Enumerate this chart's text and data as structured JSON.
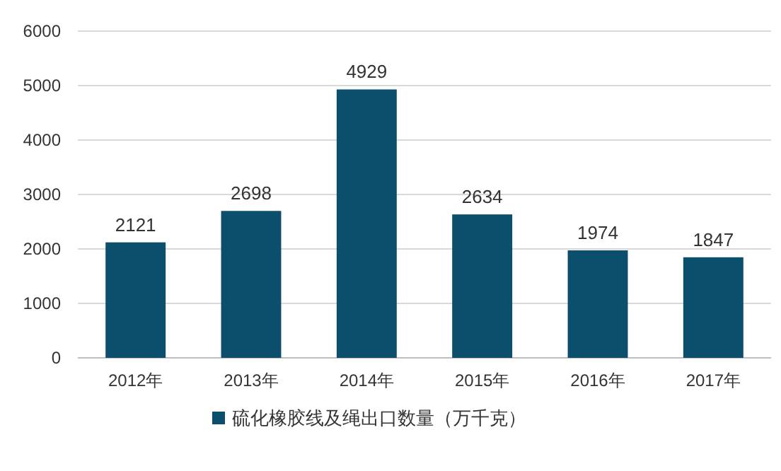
{
  "chart_data": {
    "type": "bar",
    "categories": [
      "2012年",
      "2013年",
      "2014年",
      "2015年",
      "2016年",
      "2017年"
    ],
    "series": [
      {
        "name": "硫化橡胶线及绳出口数量（万千克）",
        "color": "#0b4f6c",
        "values": [
          2121,
          2698,
          4929,
          2634,
          1974,
          1847
        ]
      }
    ],
    "ylim": [
      0,
      6000
    ],
    "yticks": [
      0,
      1000,
      2000,
      3000,
      4000,
      5000,
      6000
    ],
    "grid": "y",
    "data_labels": true,
    "legend": "bottom"
  }
}
